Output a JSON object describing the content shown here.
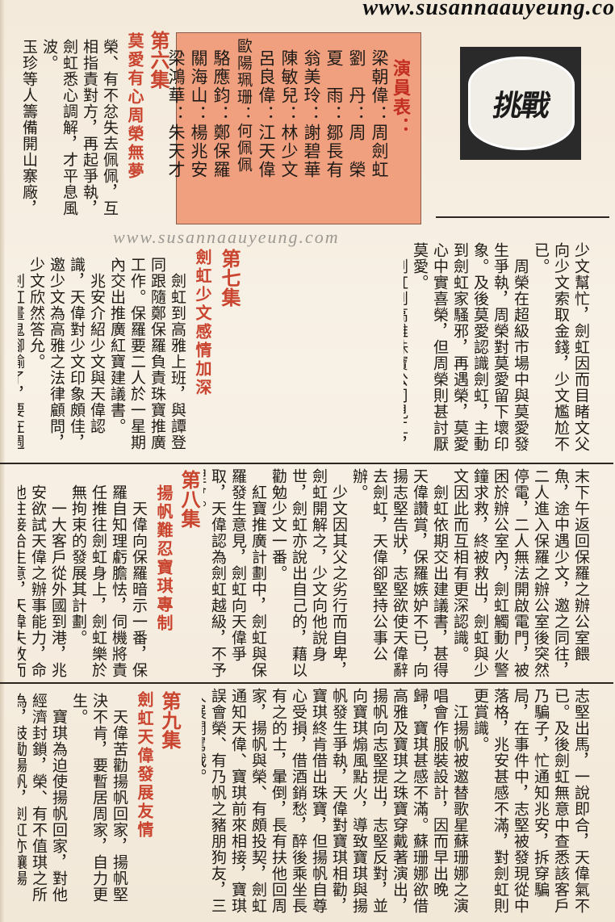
{
  "watermark": {
    "top": "www.susannaauyeung.co",
    "middle": "www.susannaauyeung.com"
  },
  "logo": {
    "text": "挑戰"
  },
  "cast": {
    "title": "演員表：",
    "lines": [
      "梁朝偉：周劍虹",
      "劉　丹：周　榮",
      "夏　雨：鄒長有",
      "翁美玲：謝碧華",
      "陳敏兒：林少文",
      "呂良偉：江天偉",
      "歐陽珮珊：何佩佩",
      "駱應鈞：鄭保羅",
      "關海山：楊兆安",
      "梁鴻華：朱天才"
    ]
  },
  "episodes": {
    "ep6": {
      "label": "第六集",
      "title": "莫愛有心周榮無夢"
    },
    "ep7": {
      "label": "第七集",
      "title": "劍虹少文感情加深"
    },
    "ep8": {
      "label": "第八集",
      "title": "揚帆難忍寶琪專制"
    },
    "ep9": {
      "label": "第九集",
      "title": "劍虹天偉發展友情"
    }
  },
  "text": {
    "r1": "少文幫忙，劍虹因而目睹文父向少文索取金錢，少文尷尬不已。\n　周榮在超級市場中與莫愛發生爭執，周榮對莫愛留下壞印象。及後莫愛認識劍虹，主動到劍虹家騷邪，再遇榮，莫愛心中實喜榮，但周榮則甚討厭莫愛。\n　劍虹到高雅珠寶公司見工，江天偉接見，天偉對劍虹甚滿意，徵得兆安同意下，聘請了劍虹及另一人譚登。\n　劍虹需十萬元舖保才可上工，佩佩有心幫忙，但國枝不允。榮，有欲向莫愛求助，莫愛對周榮有意已久，加以答允。",
    "r2": "末下午返回保羅之辦公室餵魚，途中遇少文，邀之同往，二人進入保羅之辦公室後突然停電，二人無法開啟電門，被困於辦公室內，劍虹觸動火警鐘求救，終被救出，劍虹與少文因此而互相有更深認識。\n　劍虹依期交出建議書，甚得天偉讚賞，保羅嫉妒不已，向揚志堅告狀，志堅欲使天偉辭去劍虹，天偉卻堅持公事公辦。\n　少文因其父之劣行而自卑，劍虹開解之，少文向他說身世，劍虹亦說出自己的，藉以勸勉少文一番。\n　紅寶推廣計劃中，劍虹與保羅發生意見，劍虹向天偉爭取，天偉認為劍虹越級，不予理會。",
    "r3": "志堅出馬，一說即合，天偉氣不已。及後劍虹無意中查悉該客戶乃騙子，忙通知兆安，拆穿騙局，在事件中，志堅被發現從中落格，兆安甚感不滿，對劍虹則更賞識。\n　江揚帆被邀替歌星蘇珊娜之演唱會作服裝設計，因而早出晚歸，寶琪甚感不滿。蘇珊娜欲借高雅及寶琪之珠寶穿戴著演出，揚帆向志堅提出，志堅反對，並向寶琪煽風點火，導致寶琪與揚帆發生爭執，天偉對寶琪相勸，寶琪終肯借出珠寶，但揚帆自尊心受損，借酒銷愁，醉後乘坐長有之的士，暈倒，長有扶他回周家，揚帆與榮、有頗投契，劍虹通知天偉、寶琪前來相接，寶琪誤會榮、有乃帆之豬朋狗友，三人展開罵戰。",
    "l1": "榮、有不忿失去佩佩，互相指責對方，再起爭執，劍虹悉心調解，才平息風波。\n玉珍等人籌備開山寨廠，因不懂英文條約，托劍虹往找",
    "l2": "　劍虹到高雅上班，與譚登同跟隨鄭保羅負責珠寶推廣工作。保羅要二人於一星期內交出推廣紅寶建議書。\n　兆安介紹少文與天偉認識，天偉對少文印象頗佳，邀少文為高雅之法律顧問，少文欣然答允。\n　劍虹畫鬼腳輸了，要在週",
    "l3": "　天偉向保羅暗示一番，保羅自知理虧膽怯，伺機將責任推往劍虹身上，劍虹樂於無拘束的發展其計劃。\n　一大客戶從外國到港，兆安欲試天偉之辦事能力，命他往接洽生意，天偉失敗而回，",
    "l4": "　天偉苦勸揚帆回家，揚帆堅決不肯，要暫居周家，自力更生。\n　寶琪為迫使揚帆回家，對他經濟封鎖，榮、有不值琪之所為，鼓勵揚帆，劍虹亦讓揚"
  }
}
